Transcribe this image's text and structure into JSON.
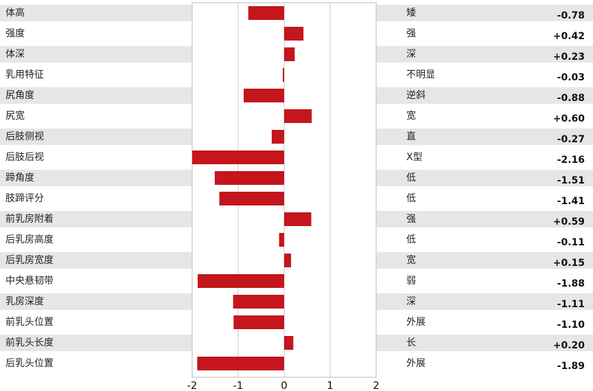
{
  "chart_data": {
    "type": "bar",
    "orientation": "horizontal",
    "xlim": [
      -2,
      2
    ],
    "x_ticks": [
      "-2",
      "-1",
      "0",
      "1",
      "2"
    ],
    "grid": true,
    "bar_color": "#c4161c",
    "rows": [
      {
        "trait": "体高",
        "desc": "矮",
        "value": -0.78,
        "label": "-0.78"
      },
      {
        "trait": "强度",
        "desc": "强",
        "value": 0.42,
        "label": "+0.42"
      },
      {
        "trait": "体深",
        "desc": "深",
        "value": 0.23,
        "label": "+0.23"
      },
      {
        "trait": "乳用特征",
        "desc": "不明显",
        "value": -0.03,
        "label": "-0.03"
      },
      {
        "trait": "尻角度",
        "desc": "逆斜",
        "value": -0.88,
        "label": "-0.88"
      },
      {
        "trait": "尻宽",
        "desc": "宽",
        "value": 0.6,
        "label": "+0.60"
      },
      {
        "trait": "后肢侧视",
        "desc": "直",
        "value": -0.27,
        "label": "-0.27"
      },
      {
        "trait": "后肢后视",
        "desc": "X型",
        "value": -2.16,
        "label": "-2.16"
      },
      {
        "trait": "蹄角度",
        "desc": "低",
        "value": -1.51,
        "label": "-1.51"
      },
      {
        "trait": "肢蹄评分",
        "desc": "低",
        "value": -1.41,
        "label": "-1.41"
      },
      {
        "trait": "前乳房附着",
        "desc": "强",
        "value": 0.59,
        "label": "+0.59"
      },
      {
        "trait": "后乳房高度",
        "desc": "低",
        "value": -0.11,
        "label": "-0.11"
      },
      {
        "trait": "后乳房宽度",
        "desc": "宽",
        "value": 0.15,
        "label": "+0.15"
      },
      {
        "trait": "中央悬韧带",
        "desc": "弱",
        "value": -1.88,
        "label": "-1.88"
      },
      {
        "trait": "乳房深度",
        "desc": "深",
        "value": -1.11,
        "label": "-1.11"
      },
      {
        "trait": "前乳头位置",
        "desc": "外展",
        "value": -1.1,
        "label": "-1.10"
      },
      {
        "trait": "前乳头长度",
        "desc": "长",
        "value": 0.2,
        "label": "+0.20"
      },
      {
        "trait": "后乳头位置",
        "desc": "外展",
        "value": -1.89,
        "label": "-1.89"
      }
    ]
  }
}
